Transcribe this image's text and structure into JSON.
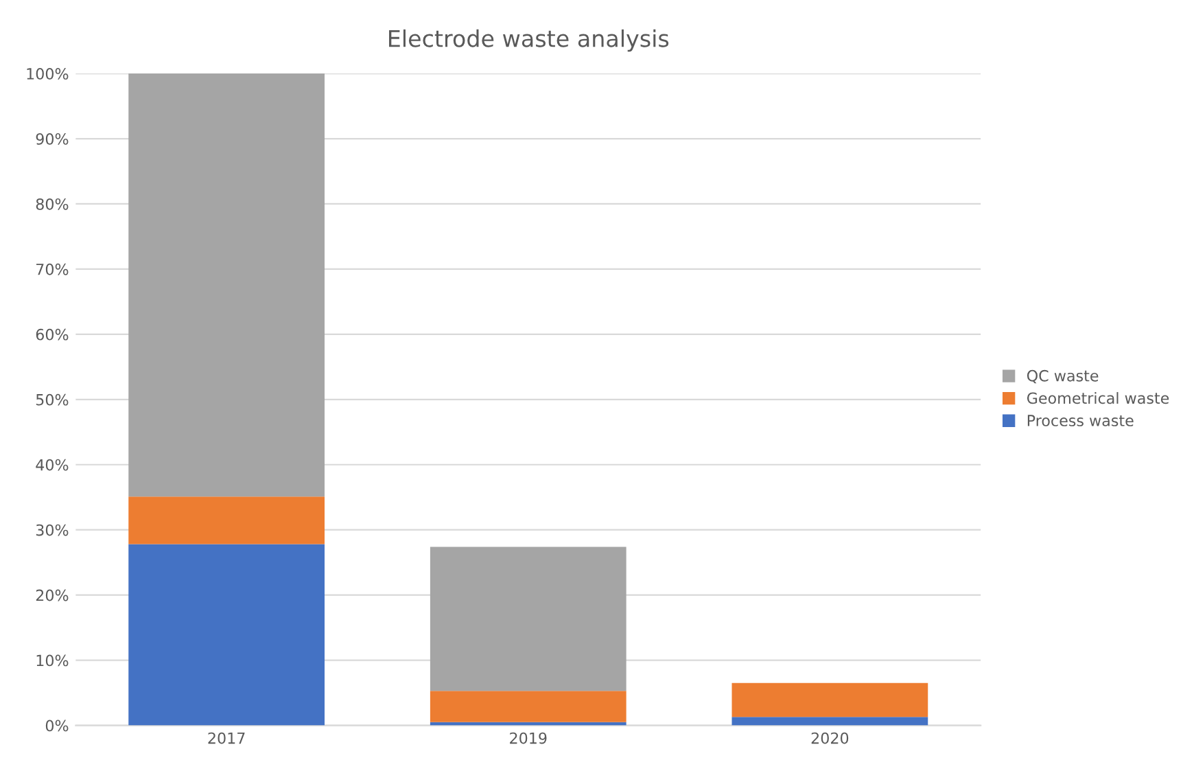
{
  "chart_data": {
    "type": "bar",
    "title": "Electrode waste analysis",
    "stacked": true,
    "categories": [
      "2017",
      "2019",
      "2020"
    ],
    "series": [
      {
        "name": "Process waste",
        "color": "#4472c4",
        "values": [
          27.8,
          0.5,
          1.3
        ]
      },
      {
        "name": "Geometrical waste",
        "color": "#ed7d31",
        "values": [
          7.3,
          4.8,
          5.2
        ]
      },
      {
        "name": "QC waste",
        "color": "#a5a5a5",
        "values": [
          64.9,
          22.1,
          0
        ]
      }
    ],
    "ylim": [
      0,
      100
    ],
    "yticks": [
      {
        "value": 0,
        "label": "0%"
      },
      {
        "value": 10,
        "label": "10%"
      },
      {
        "value": 20,
        "label": "20%"
      },
      {
        "value": 30,
        "label": "30%"
      },
      {
        "value": 40,
        "label": "40%"
      },
      {
        "value": 50,
        "label": "50%"
      },
      {
        "value": 60,
        "label": "60%"
      },
      {
        "value": 70,
        "label": "70%"
      },
      {
        "value": 80,
        "label": "80%"
      },
      {
        "value": 90,
        "label": "90%"
      },
      {
        "value": 100,
        "label": "100%"
      }
    ],
    "grid": "y",
    "legend": "right"
  }
}
